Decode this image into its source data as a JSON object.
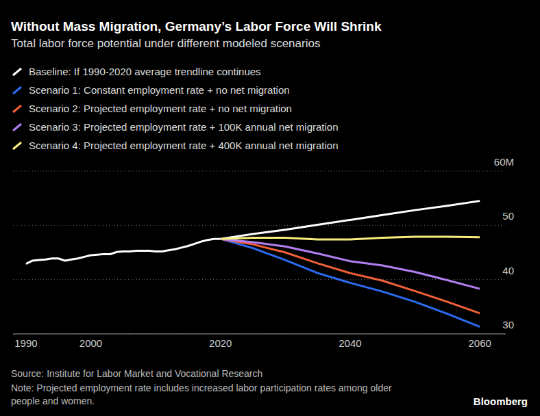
{
  "chart_data": {
    "type": "line",
    "title": "Without Mass Migration, Germany’s Labor Force Will Shrink",
    "subtitle": "Total labor force potential under different modeled scenarios",
    "x": [
      1990,
      1991,
      1992,
      1993,
      1994,
      1995,
      1996,
      1997,
      1998,
      1999,
      2000,
      2001,
      2002,
      2003,
      2004,
      2005,
      2006,
      2007,
      2008,
      2009,
      2010,
      2011,
      2012,
      2013,
      2014,
      2015,
      2016,
      2017,
      2018,
      2019,
      2020,
      2025,
      2030,
      2035,
      2040,
      2045,
      2050,
      2055,
      2060
    ],
    "series": [
      {
        "name": "Baseline: If 1990-2020 average trendline continues",
        "color": "#ffffff",
        "values": [
          42.9,
          43.5,
          43.6,
          43.7,
          43.9,
          43.9,
          43.5,
          43.7,
          43.9,
          44.2,
          44.5,
          44.6,
          44.7,
          44.7,
          45.1,
          45.2,
          45.2,
          45.3,
          45.3,
          45.3,
          45.2,
          45.2,
          45.4,
          45.6,
          45.9,
          46.2,
          46.6,
          47.0,
          47.3,
          47.5,
          47.5,
          48.4,
          49.2,
          50.1,
          51.0,
          51.9,
          52.8,
          53.6,
          54.5
        ]
      },
      {
        "name": "Scenario 1: Constant employment rate + no net migration",
        "color": "#2b6cf2",
        "values": [
          null,
          null,
          null,
          null,
          null,
          null,
          null,
          null,
          null,
          null,
          null,
          null,
          null,
          null,
          null,
          null,
          null,
          null,
          null,
          null,
          null,
          null,
          null,
          null,
          null,
          null,
          null,
          null,
          null,
          null,
          47.5,
          45.8,
          43.6,
          41.2,
          39.4,
          37.8,
          35.9,
          33.7,
          31.3
        ]
      },
      {
        "name": "Scenario 2: Projected employment rate + no net migration",
        "color": "#f2603a",
        "values": [
          null,
          null,
          null,
          null,
          null,
          null,
          null,
          null,
          null,
          null,
          null,
          null,
          null,
          null,
          null,
          null,
          null,
          null,
          null,
          null,
          null,
          null,
          null,
          null,
          null,
          null,
          null,
          null,
          null,
          null,
          47.5,
          46.5,
          45.0,
          43.0,
          41.2,
          39.8,
          37.9,
          35.9,
          33.8
        ]
      },
      {
        "name": "Scenario 3: Projected employment rate + 100K annual net migration",
        "color": "#b27ff2",
        "values": [
          null,
          null,
          null,
          null,
          null,
          null,
          null,
          null,
          null,
          null,
          null,
          null,
          null,
          null,
          null,
          null,
          null,
          null,
          null,
          null,
          null,
          null,
          null,
          null,
          null,
          null,
          null,
          null,
          null,
          null,
          47.5,
          46.9,
          46.1,
          44.8,
          43.4,
          42.6,
          41.4,
          39.9,
          38.3
        ]
      },
      {
        "name": "Scenario 4: Projected employment rate + 400K annual net migration",
        "color": "#f7ef7d",
        "values": [
          null,
          null,
          null,
          null,
          null,
          null,
          null,
          null,
          null,
          null,
          null,
          null,
          null,
          null,
          null,
          null,
          null,
          null,
          null,
          null,
          null,
          null,
          null,
          null,
          null,
          null,
          null,
          null,
          null,
          null,
          47.5,
          47.7,
          47.7,
          47.4,
          47.4,
          47.7,
          47.9,
          47.9,
          47.8
        ]
      }
    ],
    "xlim": [
      1988,
      2064
    ],
    "xticks": [
      1990,
      2000,
      2020,
      2040,
      2060
    ],
    "ylim": [
      30,
      60
    ],
    "yticks": [
      30,
      40,
      50,
      {
        "value": 60,
        "label": "60M"
      }
    ],
    "grid": true,
    "legend": "top",
    "source": "Source: Institute for Labor Market and Vocational Research",
    "note": "Note: Projected employment rate includes increased labor participation rates among older people and women.",
    "credit": "Bloomberg"
  }
}
